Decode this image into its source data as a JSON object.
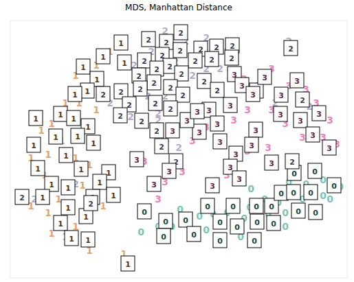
{
  "chart_data": {
    "type": "scatter",
    "title": "MDS, Manhattan Distance",
    "marker": "text",
    "tick_labels": false,
    "grid": false,
    "xlim": [
      15,
      505
    ],
    "ylim": [
      -5,
      370
    ],
    "series": [
      {
        "name": "0",
        "color": "#1b9e77",
        "x": [
          250,
          262,
          290,
          310,
          330,
          355,
          363,
          385,
          405,
          415,
          440,
          470,
          480,
          495,
          445,
          420,
          390,
          350,
          300,
          275,
          230,
          205,
          365,
          470,
          415
        ],
        "y": [
          70,
          95,
          85,
          88,
          90,
          82,
          98,
          110,
          105,
          90,
          110,
          115,
          110,
          128,
          132,
          135,
          88,
          55,
          65,
          70,
          70,
          62,
          125,
          138,
          70
        ],
        "thumbnails": {
          "x": [
            210,
            241,
            270,
            302,
            320,
            339,
            373,
            345,
            374,
            395,
            409,
            427,
            434,
            452,
            459,
            486,
            458,
            428,
            398,
            370,
            320,
            282,
            238
          ],
          "y": [
            92,
            78,
            80,
            100,
            77,
            100,
            100,
            70,
            77,
            100,
            119,
            120,
            93,
            120,
            91,
            130,
            151,
            148,
            75,
            50,
            50,
            59,
            56
          ]
        }
      },
      {
        "name": "1",
        "color": "#d95f02",
        "x": [
          160,
          140,
          110,
          95,
          75,
          60,
          90,
          70,
          45,
          110,
          130,
          65,
          85,
          45,
          70,
          110,
          95,
          150,
          120,
          140,
          115,
          180,
          130,
          75
        ],
        "y": [
          325,
          305,
          290,
          250,
          220,
          210,
          195,
          175,
          170,
          170,
          160,
          145,
          110,
          100,
          90,
          70,
          55,
          100,
          130,
          240,
          250,
          30,
          35,
          60
        ],
        "thumbnails": {
          "x": [
            150,
            176,
            181,
            121,
            141,
            127,
            109,
            88,
            52,
            107,
            128,
            81,
            49,
            136,
            96,
            55,
            118,
            158,
            75,
            99,
            145,
            165,
            135,
            62,
            99,
            125,
            88,
            104,
            128,
            186,
            113
          ],
          "y": [
            318,
            338,
            309,
            303,
            285,
            268,
            263,
            234,
            228,
            228,
            216,
            201,
            189,
            192,
            174,
            155,
            154,
            149,
            132,
            127,
            135,
            116,
            113,
            113,
            98,
            85,
            75,
            53,
            51,
            16,
            202
          ]
        }
      },
      {
        "name": "2",
        "color": "#7570b3",
        "x": [
          240,
          270,
          300,
          330,
          255,
          220,
          195,
          215,
          240,
          280,
          300,
          190,
          230,
          260,
          420,
          400,
          450,
          430,
          120,
          110,
          50,
          230,
          320,
          160
        ],
        "y": [
          355,
          340,
          345,
          325,
          310,
          325,
          305,
          260,
          260,
          290,
          300,
          230,
          225,
          185,
          340,
          250,
          245,
          155,
          160,
          132,
          110,
          235,
          300,
          250
        ],
        "thumbnails": {
          "x": [
            32,
            263,
            242,
            216,
            315,
            292,
            338,
            262,
            236,
            210,
            247,
            284,
            308,
            337,
            228,
            264,
            202,
            224,
            248,
            297,
            204,
            176,
            150,
            266,
            316,
            188,
            226,
            248,
            175,
            206,
            228,
            235,
            256,
            423,
            373,
            440,
            425,
            132
          ],
          "y": [
            113,
            353,
            339,
            343,
            332,
            329,
            334,
            327,
            320,
            312,
            304,
            312,
            314,
            316,
            300,
            293,
            290,
            280,
            273,
            282,
            271,
            267,
            263,
            262,
            269,
            248,
            250,
            242,
            232,
            224,
            210,
            187,
            165,
            330,
            268,
            255,
            165,
            104
          ]
        }
      },
      {
        "name": "3",
        "color": "#e7298a",
        "x": [
          355,
          375,
          395,
          420,
          445,
          460,
          480,
          470,
          440,
          415,
          395,
          360,
          340,
          310,
          300,
          280,
          265,
          240,
          210,
          230,
          360,
          390,
          490,
          400,
          330
        ],
        "y": [
          285,
          275,
          300,
          275,
          270,
          250,
          225,
          200,
          200,
          220,
          240,
          240,
          225,
          230,
          215,
          195,
          150,
          135,
          165,
          110,
          180,
          185,
          190,
          160,
          145
        ],
        "thumbnails": {
          "x": [
            341,
            352,
            368,
            385,
            409,
            432,
            437,
            464,
            479,
            455,
            408,
            372,
            335,
            304,
            316,
            290,
            272,
            251,
            287,
            320,
            343,
            366,
            395,
            335,
            199,
            246,
            224,
            309,
            348
          ],
          "y": [
            292,
            276,
            263,
            288,
            262,
            283,
            225,
            235,
            185,
            204,
            234,
            211,
            247,
            240,
            220,
            208,
            225,
            210,
            238,
            194,
            176,
            189,
            163,
            157,
            168,
            151,
            132,
            130,
            140
          ]
        }
      }
    ]
  }
}
